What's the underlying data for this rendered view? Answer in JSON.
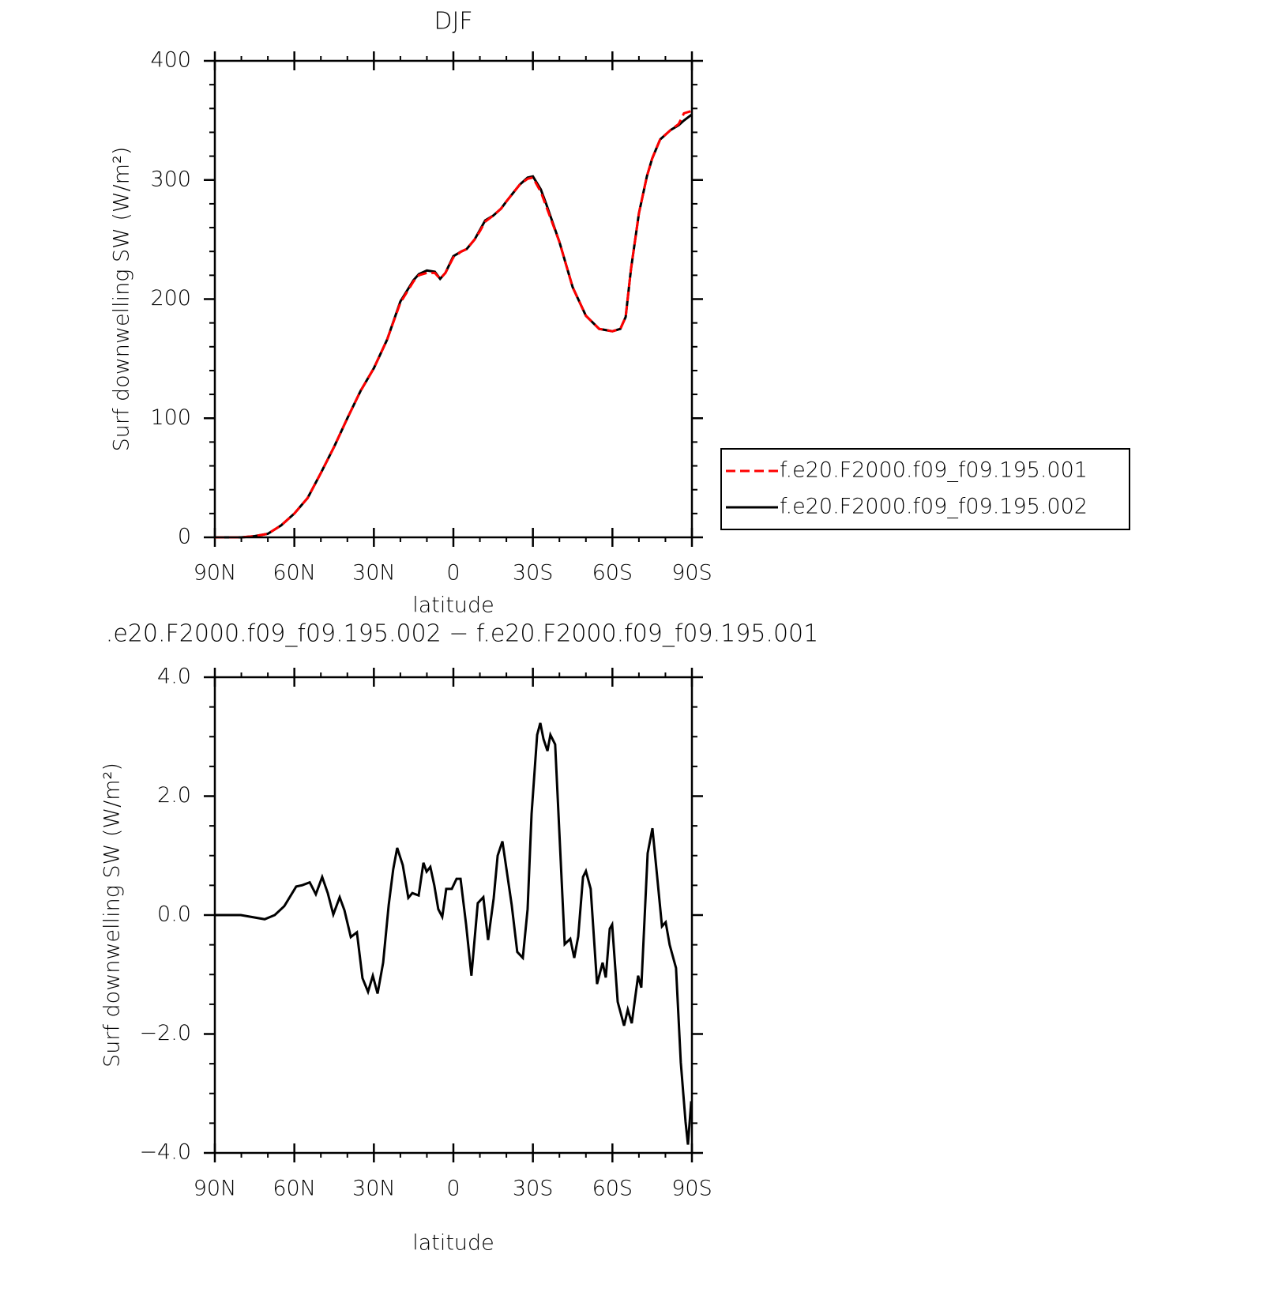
{
  "chart_data": [
    {
      "type": "line",
      "title": "DJF",
      "xlabel": "latitude",
      "ylabel": "Surf downwelling SW (W/m²)",
      "xlim": [
        90,
        -90
      ],
      "xticks": [
        {
          "value": 90,
          "label": "90N"
        },
        {
          "value": 60,
          "label": "60N"
        },
        {
          "value": 30,
          "label": "30N"
        },
        0,
        {
          "value": -30,
          "label": "30S"
        },
        {
          "value": -60,
          "label": "60S"
        },
        {
          "value": -90,
          "label": "90S"
        }
      ],
      "minor_xticks": [
        80,
        70,
        50,
        40,
        20,
        10,
        -10,
        -20,
        -40,
        -50,
        -70,
        -80
      ],
      "ylim": [
        0,
        400
      ],
      "yticks": [
        0,
        100,
        200,
        300,
        400
      ],
      "minor_yticks": [
        20,
        40,
        60,
        80,
        120,
        140,
        160,
        180,
        220,
        240,
        260,
        280,
        320,
        340,
        360,
        380
      ],
      "legend": "right",
      "x": [
        90,
        85,
        80,
        75,
        70,
        65,
        60,
        55,
        50,
        45,
        40,
        35,
        30,
        25,
        20,
        15,
        13,
        10,
        7,
        5,
        3,
        0,
        -3,
        -5,
        -8,
        -10,
        -12,
        -15,
        -18,
        -20,
        -25,
        -28,
        -30,
        -33,
        -35,
        -40,
        -45,
        -50,
        -55,
        -60,
        -63,
        -65,
        -67,
        -70,
        -73,
        -75,
        -78,
        -80,
        -82,
        -85,
        -87,
        -90
      ],
      "series": [
        {
          "name": "f.e20.F2000.f09_f09.195.001",
          "color": "#ff0000",
          "linestyle": "dashed",
          "values": [
            0,
            0,
            0,
            1,
            3,
            10,
            20,
            33,
            54,
            76,
            100,
            123,
            142,
            166,
            197,
            215,
            220,
            222,
            222,
            217,
            222,
            235,
            240,
            242,
            250,
            257,
            265,
            270,
            276,
            282,
            296,
            301,
            302,
            290,
            278,
            248,
            210,
            186,
            175,
            173,
            175,
            185,
            225,
            272,
            303,
            318,
            334,
            338,
            342,
            347,
            356,
            358
          ]
        },
        {
          "name": "f.e20.F2000.f09_f09.195.002",
          "color": "#000000",
          "linestyle": "solid",
          "values": [
            0,
            0,
            0,
            1,
            3,
            10,
            20,
            33,
            54,
            76,
            100,
            123,
            142,
            166,
            198,
            216,
            221,
            224,
            223,
            217,
            222,
            236,
            240,
            242,
            250,
            258,
            266,
            270,
            276,
            282,
            296,
            302,
            303,
            292,
            280,
            248,
            210,
            186,
            175,
            173,
            175,
            185,
            225,
            272,
            303,
            318,
            334,
            338,
            342,
            346,
            350,
            355
          ]
        }
      ]
    },
    {
      "type": "line",
      "title": ".e20.F2000.f09_f09.195.002 − f.e20.F2000.f09_f09.195.001",
      "xlabel": "latitude",
      "ylabel": "Surf downwelling SW (W/m²)",
      "xlim": [
        90,
        -90
      ],
      "xticks": [
        {
          "value": 90,
          "label": "90N"
        },
        {
          "value": 60,
          "label": "60N"
        },
        {
          "value": 30,
          "label": "30N"
        },
        0,
        {
          "value": -30,
          "label": "30S"
        },
        {
          "value": -60,
          "label": "60S"
        },
        {
          "value": -90,
          "label": "90S"
        }
      ],
      "minor_xticks": [
        80,
        70,
        50,
        40,
        20,
        10,
        -10,
        -20,
        -40,
        -50,
        -70,
        -80
      ],
      "ylim": [
        -4,
        4
      ],
      "yticks": [
        {
          "value": -4,
          "label": "−4.0"
        },
        {
          "value": -2,
          "label": "−2.0"
        },
        {
          "value": 0,
          "label": "0.0"
        },
        {
          "value": 2,
          "label": "2.0"
        },
        {
          "value": 4,
          "label": "4.0"
        }
      ],
      "minor_yticks": [
        -3.5,
        -3,
        -2.5,
        -1.5,
        -1,
        -0.5,
        0.5,
        1,
        1.5,
        2.5,
        3,
        3.5
      ],
      "x": [
        90,
        80.2,
        71.2,
        67.4,
        63.8,
        59.3,
        57.2,
        54.2,
        51.9,
        49.5,
        47.4,
        45.3,
        42.9,
        41.1,
        38.7,
        36.4,
        34.3,
        32.2,
        30.4,
        28.6,
        26.5,
        24.4,
        22.7,
        21.2,
        19.1,
        17,
        15.5,
        13.1,
        11.3,
        10.1,
        8.7,
        7.2,
        5.7,
        4.2,
        2.7,
        0.6,
        -1.2,
        -2.7,
        -4.8,
        -6.8,
        -9.2,
        -11.3,
        -13.1,
        -15.2,
        -16.7,
        -18.5,
        -22,
        -24.1,
        -26.2,
        -28,
        -29.5,
        -31.6,
        -32.8,
        -34,
        -35.5,
        -36.6,
        -38.4,
        -42,
        -44.1,
        -45.6,
        -47.1,
        -48.9,
        -50,
        -51.8,
        -54.2,
        -56.3,
        -57.5,
        -59,
        -59.9,
        -62,
        -64.4,
        -65.8,
        -67.3,
        -69.7,
        -70.9,
        -73.3,
        -75.1,
        -76.9,
        -78.7,
        -80.1,
        -81.6,
        -84,
        -85.8,
        -87.6,
        -88.5,
        -89.7,
        -90
      ],
      "series": [
        {
          "name": "f.e20.F2000.f09_f09.195.002 − f.e20.F2000.f09_f09.195.001",
          "color": "#000000",
          "linestyle": "solid",
          "values": [
            0,
            0,
            -0.07,
            0,
            0.15,
            0.48,
            0.5,
            0.55,
            0.35,
            0.64,
            0.37,
            0.01,
            0.3,
            0.08,
            -0.37,
            -0.29,
            -1.06,
            -1.29,
            -1.02,
            -1.32,
            -0.8,
            0.17,
            0.77,
            1.13,
            0.84,
            0.29,
            0.37,
            0.33,
            0.88,
            0.73,
            0.81,
            0.5,
            0.1,
            -0.03,
            0.44,
            0.44,
            0.61,
            0.61,
            -0.16,
            -1.02,
            0.2,
            0.3,
            -0.42,
            0.28,
            1.0,
            1.24,
            0.17,
            -0.62,
            -0.72,
            0.1,
            1.7,
            3.03,
            3.23,
            2.96,
            2.76,
            3.03,
            2.87,
            -0.49,
            -0.4,
            -0.72,
            -0.36,
            0.64,
            0.74,
            0.44,
            -1.16,
            -0.8,
            -1.05,
            -0.23,
            -0.16,
            -1.46,
            -1.86,
            -1.59,
            -1.82,
            -1.02,
            -1.22,
            1.04,
            1.46,
            0.64,
            -0.19,
            -0.12,
            -0.5,
            -0.89,
            -2.48,
            -3.48,
            -3.86,
            -3.15,
            -3.15
          ]
        }
      ]
    }
  ]
}
